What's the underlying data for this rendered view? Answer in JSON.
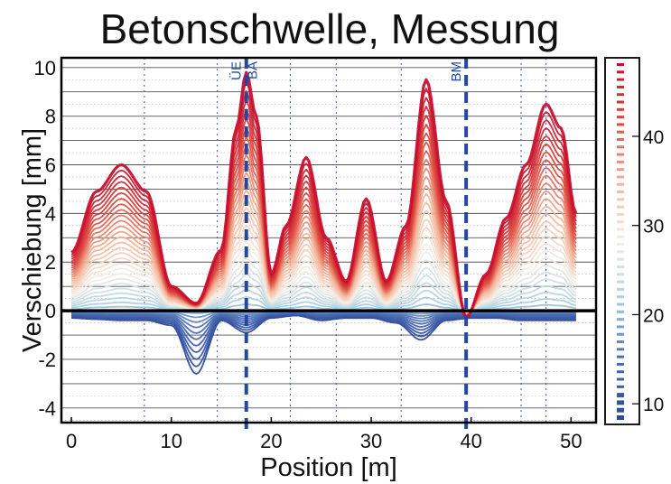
{
  "chart_data": {
    "type": "line",
    "title": "Betonschwelle, Messung",
    "xlabel": "Position [m]",
    "ylabel": "Verschiebung [mm]",
    "xlim": [
      -1,
      52.5
    ],
    "ylim": [
      -4.6,
      10.4
    ],
    "xticks": [
      0,
      10,
      20,
      30,
      40,
      50
    ],
    "yticks": [
      -4,
      -2,
      0,
      2,
      4,
      6,
      8,
      10
    ],
    "grid": true,
    "vertical_markers": [
      {
        "x": 17.5,
        "labels": [
          "ÜE",
          "BA"
        ]
      },
      {
        "x": 39.5,
        "labels": [
          "BM"
        ]
      }
    ],
    "minor_vlines": [
      7.3,
      14.6,
      21.9,
      26.5,
      33.0,
      45.0,
      47.5
    ],
    "colorbar": {
      "range": [
        8.5,
        48
      ],
      "ticks": [
        10,
        20,
        30,
        40
      ],
      "colors": [
        "#2e4a9e",
        "#4a6fb5",
        "#a9cfe0",
        "#f6efe6",
        "#f2b497",
        "#de4a3e",
        "#c8102e"
      ],
      "placement": "right"
    },
    "envelope_upper": {
      "x": [
        0,
        2.5,
        5,
        7.5,
        10,
        12.5,
        15,
        16.5,
        17.5,
        18.5,
        20,
        21.5,
        23.5,
        25.5,
        27.5,
        29.5,
        31.5,
        33.5,
        35.5,
        37.5,
        39.5,
        41.5,
        43.5,
        45.5,
        47.5,
        49,
        50.5
      ],
      "y": [
        2.4,
        4.9,
        6.0,
        4.9,
        1.0,
        0.3,
        2.5,
        7.5,
        9.8,
        8.0,
        1.5,
        3.5,
        6.3,
        3.0,
        1.2,
        4.6,
        1.2,
        3.5,
        9.5,
        4.5,
        -0.3,
        1.5,
        3.8,
        6.0,
        8.5,
        7.5,
        4.0
      ]
    },
    "envelope_lower": {
      "x": [
        0,
        2.5,
        5,
        7.5,
        10,
        12.5,
        15,
        17.5,
        20,
        22.5,
        25,
        27.5,
        30,
        32.5,
        35,
        37.5,
        40,
        42.5,
        45,
        47.5,
        50.5
      ],
      "y": [
        -0.3,
        -0.35,
        -0.4,
        -0.4,
        -0.6,
        -2.6,
        -0.4,
        -0.9,
        -0.3,
        -0.2,
        -0.4,
        -0.3,
        -0.3,
        -0.5,
        -1.2,
        -0.4,
        -0.3,
        -0.3,
        -0.4,
        -0.4,
        -0.4
      ]
    },
    "n_series": 40
  }
}
